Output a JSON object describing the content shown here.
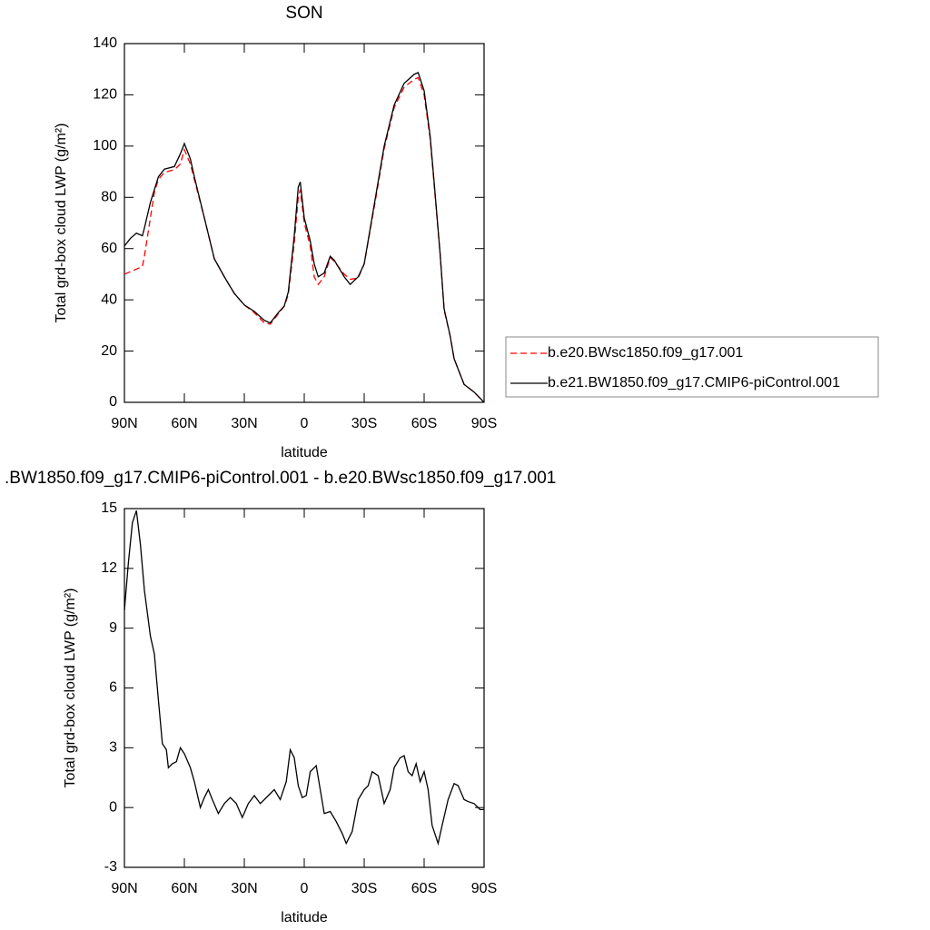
{
  "chart_data": [
    {
      "type": "line",
      "title": "SON",
      "xlabel": "latitude",
      "ylabel": "Total grd-box cloud LWP (g/m²)",
      "xlim": [
        90,
        -90
      ],
      "xticks": [
        {
          "value": 90,
          "label": "90N"
        },
        {
          "value": 60,
          "label": "60N"
        },
        {
          "value": 30,
          "label": "30N"
        },
        0,
        {
          "value": -30,
          "label": "30S"
        },
        {
          "value": -60,
          "label": "60S"
        },
        {
          "value": -90,
          "label": "90S"
        }
      ],
      "ylim": [
        0,
        140
      ],
      "yticks": [
        0,
        20,
        40,
        60,
        80,
        100,
        120,
        140
      ],
      "legend": "right",
      "x": [
        90,
        87,
        84,
        81,
        80,
        77,
        75,
        73,
        70,
        65,
        62,
        60,
        57,
        55,
        50,
        45,
        40,
        35,
        30,
        25,
        20,
        17,
        13,
        10,
        8,
        5,
        3,
        2,
        0,
        -3,
        -5,
        -7,
        -10,
        -13,
        -15,
        -20,
        -23,
        -27,
        -30,
        -35,
        -40,
        -45,
        -50,
        -55,
        -57,
        -60,
        -63,
        -65,
        -68,
        -70,
        -73,
        -75,
        -80,
        -85,
        -90
      ],
      "series": [
        {
          "name": "b.e20.BWsc1850.f09_g17.001",
          "color": "#ff0000",
          "dash": true,
          "values": [
            50,
            51,
            52,
            53,
            57,
            72,
            82,
            87,
            89.7,
            90.8,
            93,
            98.6,
            93,
            87,
            72,
            56,
            49,
            42.5,
            38,
            35,
            31,
            30.5,
            34.5,
            37.5,
            42,
            62,
            80,
            83,
            70,
            61,
            49,
            46,
            49,
            56.5,
            55,
            50,
            48,
            48.5,
            54,
            76,
            99,
            115,
            123,
            126,
            126.7,
            120,
            103,
            85,
            58,
            36,
            26,
            17,
            7,
            4,
            0
          ]
        },
        {
          "name": "b.e21.BW1850.f09_g17.CMIP6-piControl.001",
          "color": "#000000",
          "dash": false,
          "values": [
            61,
            64,
            66,
            65,
            68,
            78,
            83,
            88,
            91,
            92,
            97,
            101,
            95,
            88,
            72,
            56,
            49,
            42.5,
            38,
            35.5,
            32,
            31,
            35,
            37.6,
            43,
            65,
            84,
            86,
            72,
            63,
            54,
            49,
            50.5,
            57,
            55.5,
            49,
            46,
            49,
            54,
            77,
            100,
            116,
            124.5,
            128,
            128.7,
            121.6,
            104,
            86,
            58,
            36.5,
            26,
            17,
            7,
            4,
            0
          ]
        }
      ]
    },
    {
      "type": "line",
      "title": ".BW1850.f09_g17.CMIP6-piControl.001 - b.e20.BWsc1850.f09_g17.001",
      "xlabel": "latitude",
      "ylabel": "Total grd-box cloud LWP (g/m²)",
      "xlim": [
        90,
        -90
      ],
      "xticks": [
        {
          "value": 90,
          "label": "90N"
        },
        {
          "value": 60,
          "label": "60N"
        },
        {
          "value": 30,
          "label": "30N"
        },
        0,
        {
          "value": -30,
          "label": "30S"
        },
        {
          "value": -60,
          "label": "60S"
        },
        {
          "value": -90,
          "label": "90S"
        }
      ],
      "ylim": [
        -3,
        15
      ],
      "yticks": [
        -3,
        0,
        3,
        6,
        9,
        12,
        15
      ],
      "color": "#000000",
      "x": [
        90,
        88,
        86,
        84,
        82,
        80,
        77,
        75,
        73,
        71,
        69,
        68,
        66,
        64,
        62,
        60,
        57,
        55,
        52,
        50,
        48,
        46,
        43,
        40,
        37,
        34,
        31,
        28,
        25,
        22,
        18,
        15,
        12,
        9,
        7,
        5,
        3,
        1,
        -1,
        -3,
        -6,
        -8,
        -10,
        -13,
        -16,
        -19,
        -21,
        -24,
        -27,
        -30,
        -32,
        -34,
        -37,
        -40,
        -43,
        -45,
        -48,
        -50,
        -52,
        -54,
        -56,
        -58,
        -60,
        -62,
        -64,
        -67,
        -69,
        -72,
        -75,
        -77,
        -80,
        -82,
        -85,
        -88,
        -90
      ],
      "values": [
        9.9,
        12.3,
        14.3,
        14.9,
        13.2,
        10.9,
        8.6,
        7.7,
        5.4,
        3.2,
        2.9,
        2,
        2.2,
        2.3,
        3,
        2.7,
        2,
        1.3,
        0,
        0.5,
        0.9,
        0.4,
        -0.3,
        0.2,
        0.5,
        0.2,
        -0.5,
        0.2,
        0.6,
        0.2,
        0.6,
        0.9,
        0.4,
        1.3,
        2.9,
        2.5,
        1.1,
        0.5,
        0.6,
        1.8,
        2.1,
        0.9,
        -0.3,
        -0.2,
        -0.7,
        -1.3,
        -1.8,
        -1.2,
        0.4,
        0.9,
        1.1,
        1.8,
        1.6,
        0.2,
        0.9,
        2,
        2.5,
        2.6,
        1.8,
        1.6,
        2.2,
        1.3,
        1.8,
        0.9,
        -0.9,
        -1.8,
        -0.9,
        0.4,
        1.2,
        1.1,
        0.4,
        0.3,
        0.2,
        -0.1,
        -0.1
      ]
    }
  ]
}
